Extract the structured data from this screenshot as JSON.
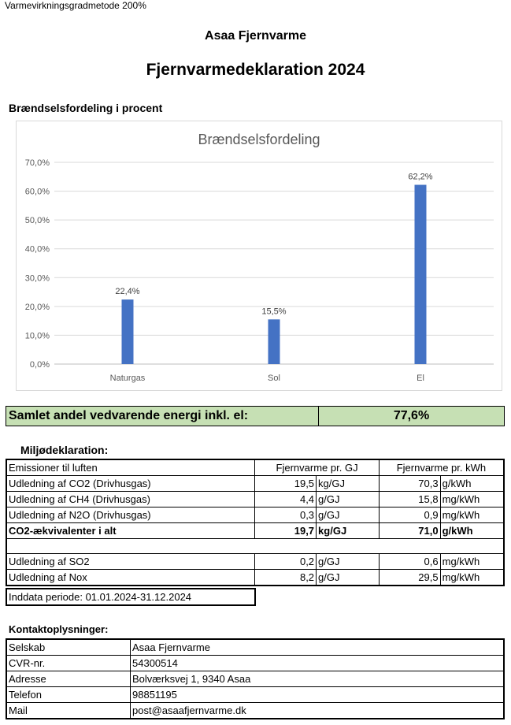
{
  "method_label": "Varmevirkningsgradmetode 200%",
  "company": "Asaa Fjernvarme",
  "title": "Fjernvarmedeklaration 2024",
  "fuel_section_heading": "Brændselsfordeling i procent",
  "chart_data": {
    "type": "bar",
    "title": "Brændselsfordeling",
    "categories": [
      "Naturgas",
      "Sol",
      "El"
    ],
    "values": [
      22.4,
      15.5,
      62.2
    ],
    "value_labels": [
      "22,4%",
      "15,5%",
      "62,2%"
    ],
    "ylim": [
      0,
      70
    ],
    "yticks": [
      "0,0%",
      "10,0%",
      "20,0%",
      "30,0%",
      "40,0%",
      "50,0%",
      "60,0%",
      "70,0%"
    ],
    "grid": true,
    "bar_color": "#4472c4"
  },
  "renewable_share": {
    "label": "Samlet andel vedvarende energi inkl. el:",
    "value": "77,6%",
    "bg_color": "#c6e0b4"
  },
  "environment": {
    "heading": "Miljødeklaration:",
    "headers": [
      "Emissioner til luften",
      "Fjernvarme pr. GJ",
      "Fjernvarme pr. kWh"
    ],
    "rows": [
      {
        "label": "Udledning af CO2 (Drivhusgas)",
        "gj": "19,5",
        "gj_unit": "kg/GJ",
        "kwh": "70,3",
        "kwh_unit": "g/kWh"
      },
      {
        "label": "Udledning af CH4 (Drivhusgas)",
        "gj": "4,4",
        "gj_unit": "g/GJ",
        "kwh": "15,8",
        "kwh_unit": "mg/kWh"
      },
      {
        "label": "Udledning af N2O (Drivhusgas)",
        "gj": "0,3",
        "gj_unit": "g/GJ",
        "kwh": "0,9",
        "kwh_unit": "mg/kWh"
      },
      {
        "label": "CO2-ækvivalenter i alt",
        "gj": "19,7",
        "gj_unit": "kg/GJ",
        "kwh": "71,0",
        "kwh_unit": "g/kWh"
      },
      {
        "label": "Udledning af SO2",
        "gj": "0,2",
        "gj_unit": "g/GJ",
        "kwh": "0,6",
        "kwh_unit": "mg/kWh"
      },
      {
        "label": "Udledning af Nox",
        "gj": "8,2",
        "gj_unit": "g/GJ",
        "kwh": "29,5",
        "kwh_unit": "mg/kWh"
      }
    ],
    "period": "Inddata periode: 01.01.2024-31.12.2024"
  },
  "contact": {
    "heading": "Kontaktoplysninger:",
    "rows": [
      {
        "key": "Selskab",
        "value": "Asaa Fjernvarme"
      },
      {
        "key": "CVR-nr.",
        "value": "54300514"
      },
      {
        "key": "Adresse",
        "value": "Bolværksvej 1, 9340 Asaa"
      },
      {
        "key": "Telefon",
        "value": "98851195"
      },
      {
        "key": "Mail",
        "value": "post@asaafjernvarme.dk"
      }
    ]
  }
}
